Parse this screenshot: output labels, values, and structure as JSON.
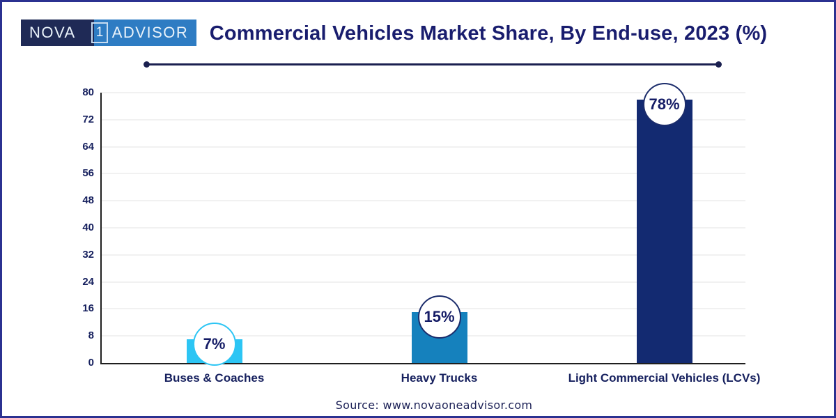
{
  "logo": {
    "left_text": "NOVA",
    "one_text": "1",
    "right_text": "ADVISOR",
    "left_bg": "#1F2A56",
    "right_bg": "#2E7CC3"
  },
  "header": {
    "title": "Commercial Vehicles Market Share, By End-use, 2023 (%)"
  },
  "chart_data": {
    "type": "bar",
    "title": "Commercial Vehicles Market Share, By End-use, 2023 (%)",
    "categories": [
      "Buses & Coaches",
      "Heavy Trucks",
      "Light Commercial Vehicles (LCVs)"
    ],
    "values": [
      7,
      15,
      78
    ],
    "value_labels": [
      "7%",
      "15%",
      "78%"
    ],
    "bar_colors": [
      "#2CC5F4",
      "#1581BD",
      "#132A71"
    ],
    "badge_border_colors": [
      "#2CC5F4",
      "#1B2C6B",
      "#1B2C6B"
    ],
    "xlabel": "",
    "ylabel": "",
    "ylim": [
      0,
      80
    ],
    "ytick_step": 8,
    "yticks": [
      0,
      8,
      16,
      24,
      32,
      40,
      48,
      56,
      64,
      72,
      80
    ],
    "grid": true,
    "legend": false
  },
  "footer": {
    "source": "Source: www.novaoneadvisor.com"
  },
  "frame": {
    "border_color": "#2B3191"
  }
}
